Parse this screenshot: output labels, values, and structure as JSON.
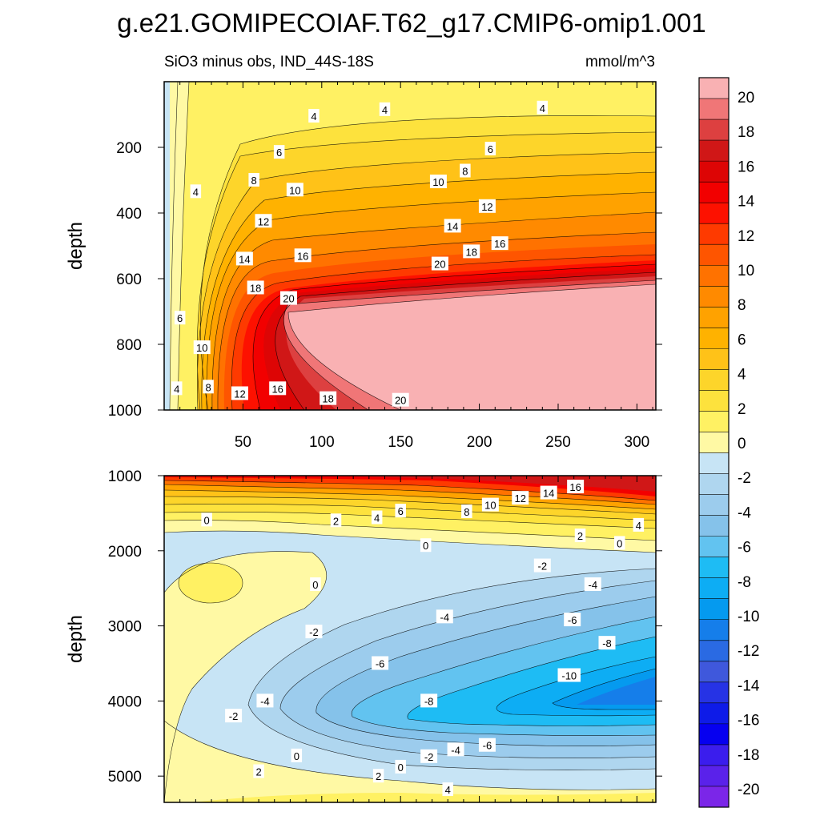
{
  "title": "g.e21.GOMIPECOIAF.T62_g17.CMIP6-omip1.001",
  "chart_data": [
    {
      "type": "heatmap",
      "subtitle": "SiO3 minus obs, IND_44S-18S",
      "units": "mmol/m^3",
      "xlabel": "",
      "ylabel": "depth",
      "xlim": [
        0,
        312
      ],
      "ylim": [
        1000,
        0
      ],
      "x_ticks": [
        50,
        100,
        150,
        200,
        250,
        300
      ],
      "y_ticks": [
        200,
        400,
        600,
        800,
        1000
      ],
      "contour_labels": [
        {
          "x": 140,
          "y": 85,
          "v": "4"
        },
        {
          "x": 95,
          "y": 105,
          "v": "4"
        },
        {
          "x": 240,
          "y": 80,
          "v": "4"
        },
        {
          "x": 73,
          "y": 215,
          "v": "6"
        },
        {
          "x": 207,
          "y": 205,
          "v": "6"
        },
        {
          "x": 20,
          "y": 335,
          "v": "4"
        },
        {
          "x": 57,
          "y": 300,
          "v": "8"
        },
        {
          "x": 191,
          "y": 272,
          "v": "8"
        },
        {
          "x": 83,
          "y": 330,
          "v": "10"
        },
        {
          "x": 174,
          "y": 305,
          "v": "10"
        },
        {
          "x": 63,
          "y": 425,
          "v": "12"
        },
        {
          "x": 205,
          "y": 380,
          "v": "12"
        },
        {
          "x": 183,
          "y": 440,
          "v": "14"
        },
        {
          "x": 51,
          "y": 540,
          "v": "14"
        },
        {
          "x": 88,
          "y": 530,
          "v": "16"
        },
        {
          "x": 213,
          "y": 493,
          "v": "16"
        },
        {
          "x": 195,
          "y": 518,
          "v": "18"
        },
        {
          "x": 175,
          "y": 555,
          "v": "20"
        },
        {
          "x": 58,
          "y": 628,
          "v": "18"
        },
        {
          "x": 79,
          "y": 660,
          "v": "20"
        },
        {
          "x": 10,
          "y": 720,
          "v": "6"
        },
        {
          "x": 24,
          "y": 810,
          "v": "10"
        },
        {
          "x": 8,
          "y": 935,
          "v": "4"
        },
        {
          "x": 28,
          "y": 930,
          "v": "8"
        },
        {
          "x": 48,
          "y": 950,
          "v": "12"
        },
        {
          "x": 72,
          "y": 935,
          "v": "16"
        },
        {
          "x": 104,
          "y": 965,
          "v": "18"
        },
        {
          "x": 150,
          "y": 970,
          "v": "20"
        }
      ]
    },
    {
      "type": "heatmap",
      "subtitle": "",
      "units": "mmol/m^3",
      "xlabel": "",
      "ylabel": "depth",
      "xlim": [
        0,
        312
      ],
      "ylim": [
        5350,
        1000
      ],
      "x_ticks": [
        50,
        100,
        150,
        200,
        250,
        300
      ],
      "y_ticks": [
        1000,
        2000,
        3000,
        4000,
        5000
      ],
      "contour_labels": [
        {
          "x": 27,
          "y": 1590,
          "v": "0"
        },
        {
          "x": 109,
          "y": 1600,
          "v": "2"
        },
        {
          "x": 135,
          "y": 1560,
          "v": "4"
        },
        {
          "x": 150,
          "y": 1470,
          "v": "6"
        },
        {
          "x": 192,
          "y": 1480,
          "v": "8"
        },
        {
          "x": 207,
          "y": 1390,
          "v": "10"
        },
        {
          "x": 226,
          "y": 1300,
          "v": "12"
        },
        {
          "x": 244,
          "y": 1230,
          "v": "14"
        },
        {
          "x": 261,
          "y": 1150,
          "v": "16"
        },
        {
          "x": 264,
          "y": 1800,
          "v": "2"
        },
        {
          "x": 289,
          "y": 1900,
          "v": "0"
        },
        {
          "x": 301,
          "y": 1660,
          "v": "4"
        },
        {
          "x": 166,
          "y": 1930,
          "v": "0"
        },
        {
          "x": 240,
          "y": 2200,
          "v": "-2"
        },
        {
          "x": 272,
          "y": 2450,
          "v": "-4"
        },
        {
          "x": 96,
          "y": 2450,
          "v": "0"
        },
        {
          "x": 178,
          "y": 2880,
          "v": "-4"
        },
        {
          "x": 259,
          "y": 2920,
          "v": "-6"
        },
        {
          "x": 95,
          "y": 3080,
          "v": "-2"
        },
        {
          "x": 281,
          "y": 3230,
          "v": "-8"
        },
        {
          "x": 137,
          "y": 3500,
          "v": "-6"
        },
        {
          "x": 257,
          "y": 3660,
          "v": "-10"
        },
        {
          "x": 64,
          "y": 4000,
          "v": "-4"
        },
        {
          "x": 168,
          "y": 4000,
          "v": "-8"
        },
        {
          "x": 44,
          "y": 4200,
          "v": "-2"
        },
        {
          "x": 205,
          "y": 4590,
          "v": "-6"
        },
        {
          "x": 185,
          "y": 4650,
          "v": "-4"
        },
        {
          "x": 84,
          "y": 4730,
          "v": "0"
        },
        {
          "x": 168,
          "y": 4740,
          "v": "-2"
        },
        {
          "x": 150,
          "y": 4880,
          "v": "0"
        },
        {
          "x": 60,
          "y": 4940,
          "v": "2"
        },
        {
          "x": 136,
          "y": 5000,
          "v": "2"
        },
        {
          "x": 180,
          "y": 5180,
          "v": "4"
        }
      ]
    }
  ],
  "colorbar": {
    "levels": [
      20,
      18,
      16,
      14,
      12,
      10,
      8,
      6,
      4,
      2,
      0,
      -2,
      -4,
      -6,
      -8,
      -10,
      -12,
      -14,
      -16,
      -18,
      -20
    ],
    "colors": [
      "#f9b1b3",
      "#f07677",
      "#dd4040",
      "#d01717",
      "#dd0505",
      "#f20000",
      "#fd1100",
      "#fe3a00",
      "#fe5500",
      "#ff7200",
      "#ff8a00",
      "#ffa200",
      "#ffb200",
      "#ffc218",
      "#fdd52a",
      "#fde23d",
      "#fff163",
      "#fff9a4",
      "#c7e4f5",
      "#afd6ef",
      "#9ccced",
      "#85c2ea",
      "#62c3f0",
      "#1ebcf4",
      "#0dadf4",
      "#059aef",
      "#157eea",
      "#2a6ae3",
      "#3f58dc",
      "#2633e5",
      "#0e1be8",
      "#0600f0",
      "#3b1ded",
      "#5a22ea",
      "#7b26e8"
    ]
  }
}
